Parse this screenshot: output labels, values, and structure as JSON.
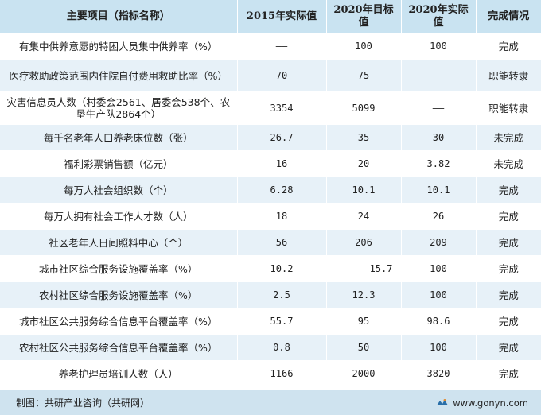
{
  "table": {
    "headers": [
      "主要项目（指标名称）",
      "2015年实际值",
      "2020年目标值",
      "2020年实际值",
      "完成情况"
    ],
    "rows": [
      {
        "name": "有集中供养意愿的特困人员集中供养率（%）",
        "v2015": "——",
        "target2020": "100",
        "actual2020": "100",
        "status": "完成"
      },
      {
        "name": "医疗救助政策范围内住院自付费用救助比率（%）",
        "v2015": "70",
        "target2020": "75",
        "actual2020": "——",
        "status": "职能转隶"
      },
      {
        "name": "灾害信息员人数（村委会2561、居委会538个、农垦牛产队2864个）",
        "v2015": "3354",
        "target2020": "5099",
        "actual2020": "——",
        "status": "职能转隶"
      },
      {
        "name": "每千名老年人口养老床位数（张）",
        "v2015": "26.7",
        "target2020": "35",
        "actual2020": "30",
        "status": "未完成"
      },
      {
        "name": "福利彩票销售额（亿元）",
        "v2015": "16",
        "target2020": "20",
        "actual2020": "3.82",
        "status": "未完成"
      },
      {
        "name": "每万人社会组织数（个）",
        "v2015": "6.28",
        "target2020": "10.1",
        "actual2020": "10.1",
        "status": "完成"
      },
      {
        "name": "每万人拥有社会工作人才数（人）",
        "v2015": "18",
        "target2020": "24",
        "actual2020": "26",
        "status": "完成"
      },
      {
        "name": "社区老年人日间照料中心（个）",
        "v2015": "56",
        "target2020": "206",
        "actual2020": "209",
        "status": "完成"
      },
      {
        "name": "城市社区综合服务设施覆盖率（%）",
        "v2015": "10.2",
        "target2020": "15.7",
        "actual2020": "100",
        "status": "完成"
      },
      {
        "name": "农村社区综合服务设施覆盖率（%）",
        "v2015": "2.5",
        "target2020": "12.3",
        "actual2020": "100",
        "status": "完成"
      },
      {
        "name": "城市社区公共服务综合信息平台覆盖率（%）",
        "v2015": "55.7",
        "target2020": "95",
        "actual2020": "98.6",
        "status": "完成"
      },
      {
        "name": "农村社区公共服务综合信息平台覆盖率（%）",
        "v2015": "0.8",
        "target2020": "50",
        "actual2020": "100",
        "status": "完成"
      },
      {
        "name": "养老护理员培训人数（人）",
        "v2015": "1166",
        "target2020": "2000",
        "actual2020": "3820",
        "status": "完成"
      }
    ]
  },
  "footer": {
    "credit": "制图：共研产业咨询（共研网）",
    "site": "www.gonyn.com",
    "logo_icon": "gonyn-logo-icon"
  },
  "colors": {
    "header_bg": "#c9e3f1",
    "stripe_bg": "#e7f1f8",
    "footer_bg": "#cfe3ef"
  }
}
